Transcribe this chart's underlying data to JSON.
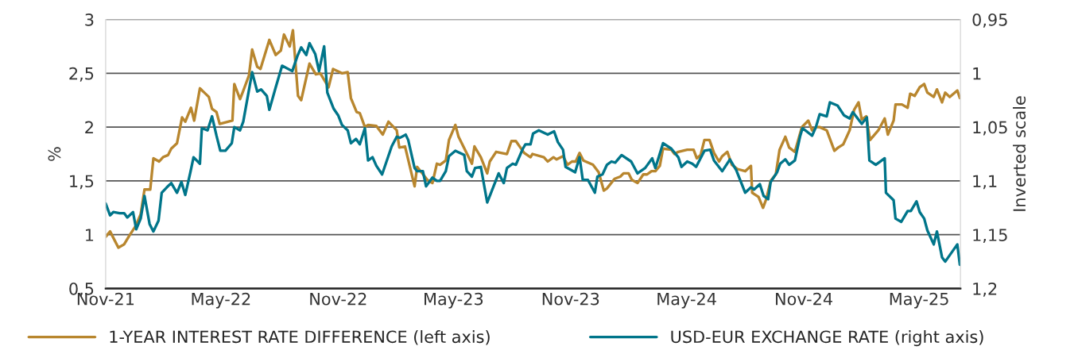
{
  "chart_data": {
    "type": "line",
    "ylabel": "%",
    "y2label": "Inverted scale",
    "xlim": [
      "2021-11-01",
      "2025-07-05"
    ],
    "xticks": [
      {
        "value": "2021-11-01",
        "label": "Nov-21"
      },
      {
        "value": "2022-05-01",
        "label": "May-22"
      },
      {
        "value": "2022-11-01",
        "label": "Nov-22"
      },
      {
        "value": "2023-05-01",
        "label": "May-23"
      },
      {
        "value": "2023-11-01",
        "label": "Nov-23"
      },
      {
        "value": "2024-05-01",
        "label": "May-24"
      },
      {
        "value": "2024-11-01",
        "label": "Nov-24"
      },
      {
        "value": "2025-05-01",
        "label": "May-25"
      }
    ],
    "ylim": [
      0.5,
      3
    ],
    "yticks": [
      {
        "value": 0.5,
        "label": "0,5"
      },
      1,
      {
        "value": 1.5,
        "label": "1,5"
      },
      2,
      {
        "value": 2.5,
        "label": "2,5"
      },
      3
    ],
    "y2lim": [
      1.2,
      0.95
    ],
    "y2ticks": [
      {
        "value": 0.95,
        "label": "0,95"
      },
      1,
      {
        "value": 1.05,
        "label": "1,05"
      },
      {
        "value": 1.1,
        "label": "1,1"
      },
      {
        "value": 1.15,
        "label": "1,15"
      },
      {
        "value": 1.2,
        "label": "1,2"
      }
    ],
    "grid": "y",
    "legend": "bottom",
    "marker": "none",
    "line_style": "solid",
    "series": [
      {
        "name": "1-YEAR INTEREST RATE DIFFERENCE (left axis)",
        "color": "#b8862e",
        "x": [
          "2021-11-01",
          "2021-11-08",
          "2021-11-21",
          "2021-11-30",
          "2021-12-08",
          "2021-12-18",
          "2021-12-26",
          "2022-01-01",
          "2022-01-10",
          "2022-01-15",
          "2022-01-24",
          "2022-01-30",
          "2022-02-07",
          "2022-02-12",
          "2022-02-21",
          "2022-03-01",
          "2022-03-06",
          "2022-03-15",
          "2022-03-20",
          "2022-03-29",
          "2022-04-12",
          "2022-04-17",
          "2022-04-24",
          "2022-04-29",
          "2022-05-19",
          "2022-05-22",
          "2022-05-31",
          "2022-06-04",
          "2022-06-14",
          "2022-06-19",
          "2022-06-27",
          "2022-07-02",
          "2022-07-16",
          "2022-07-26",
          "2022-08-03",
          "2022-08-08",
          "2022-08-17",
          "2022-08-22",
          "2022-08-30",
          "2022-09-04",
          "2022-09-17",
          "2022-09-27",
          "2022-10-04",
          "2022-10-17",
          "2022-10-24",
          "2022-11-07",
          "2022-11-16",
          "2022-11-21",
          "2022-11-30",
          "2022-12-05",
          "2022-12-13",
          "2022-12-18",
          "2022-12-31",
          "2023-01-10",
          "2023-01-19",
          "2023-02-01",
          "2023-02-05",
          "2023-02-14",
          "2023-03-01",
          "2023-03-05",
          "2023-03-21",
          "2023-03-29",
          "2023-04-05",
          "2023-04-10",
          "2023-04-19",
          "2023-04-24",
          "2023-05-04",
          "2023-05-09",
          "2023-05-30",
          "2023-06-03",
          "2023-06-13",
          "2023-06-23",
          "2023-06-27",
          "2023-07-07",
          "2023-07-24",
          "2023-07-31",
          "2023-08-07",
          "2023-08-20",
          "2023-08-30",
          "2023-09-02",
          "2023-09-20",
          "2023-09-26",
          "2023-10-05",
          "2023-10-10",
          "2023-10-20",
          "2023-10-27",
          "2023-11-03",
          "2023-11-09",
          "2023-11-15",
          "2023-11-21",
          "2023-12-06",
          "2023-12-15",
          "2023-12-23",
          "2023-12-28",
          "2024-01-09",
          "2024-01-18",
          "2024-01-23",
          "2024-01-31",
          "2024-02-05",
          "2024-02-14",
          "2024-02-23",
          "2024-02-29",
          "2024-03-07",
          "2024-03-13",
          "2024-03-20",
          "2024-03-25",
          "2024-04-07",
          "2024-04-12",
          "2024-04-18",
          "2024-05-02",
          "2024-05-12",
          "2024-05-17",
          "2024-05-23",
          "2024-05-29",
          "2024-06-06",
          "2024-06-13",
          "2024-06-21",
          "2024-06-26",
          "2024-07-04",
          "2024-07-11",
          "2024-07-20",
          "2024-08-01",
          "2024-08-10",
          "2024-08-12",
          "2024-08-22",
          "2024-08-29",
          "2024-09-03",
          "2024-09-10",
          "2024-09-18",
          "2024-09-24",
          "2024-10-03",
          "2024-10-09",
          "2024-10-18",
          "2024-10-29",
          "2024-11-08",
          "2024-11-14",
          "2024-11-20",
          "2024-11-26",
          "2024-12-07",
          "2024-12-19",
          "2024-12-25",
          "2025-01-02",
          "2025-01-12",
          "2025-01-19",
          "2025-01-26",
          "2025-01-31",
          "2025-02-07",
          "2025-02-13",
          "2025-02-26",
          "2025-03-08",
          "2025-03-13",
          "2025-03-22",
          "2025-03-25",
          "2025-04-04",
          "2025-04-13",
          "2025-04-17",
          "2025-04-24",
          "2025-05-02",
          "2025-05-09",
          "2025-05-14",
          "2025-05-24",
          "2025-05-29",
          "2025-06-06",
          "2025-06-11",
          "2025-06-18",
          "2025-06-30",
          "2025-07-04"
        ],
        "values": [
          0.98,
          1.03,
          0.88,
          0.91,
          0.99,
          1.08,
          1.19,
          1.42,
          1.42,
          1.71,
          1.68,
          1.72,
          1.74,
          1.8,
          1.85,
          2.09,
          2.05,
          2.18,
          2.06,
          2.36,
          2.28,
          2.17,
          2.14,
          2.03,
          2.06,
          2.4,
          2.26,
          2.32,
          2.48,
          2.72,
          2.56,
          2.54,
          2.81,
          2.67,
          2.71,
          2.86,
          2.75,
          2.9,
          2.29,
          2.25,
          2.59,
          2.49,
          2.5,
          2.37,
          2.54,
          2.5,
          2.51,
          2.27,
          2.14,
          2.13,
          2.0,
          2.02,
          2.01,
          1.93,
          2.05,
          1.97,
          1.81,
          1.82,
          1.45,
          1.63,
          1.51,
          1.48,
          1.66,
          1.65,
          1.69,
          1.88,
          2.02,
          1.91,
          1.66,
          1.82,
          1.72,
          1.57,
          1.68,
          1.77,
          1.75,
          1.87,
          1.87,
          1.76,
          1.72,
          1.75,
          1.72,
          1.68,
          1.72,
          1.7,
          1.73,
          1.65,
          1.68,
          1.68,
          1.76,
          1.69,
          1.65,
          1.58,
          1.41,
          1.43,
          1.52,
          1.54,
          1.57,
          1.57,
          1.51,
          1.48,
          1.56,
          1.56,
          1.59,
          1.59,
          1.64,
          1.8,
          1.79,
          1.75,
          1.77,
          1.79,
          1.79,
          1.71,
          1.74,
          1.88,
          1.88,
          1.76,
          1.68,
          1.73,
          1.77,
          1.65,
          1.61,
          1.59,
          1.64,
          1.39,
          1.35,
          1.25,
          1.33,
          1.5,
          1.56,
          1.79,
          1.91,
          1.81,
          1.77,
          2.0,
          2.06,
          1.97,
          2.0,
          2.0,
          1.97,
          1.78,
          1.81,
          1.84,
          1.97,
          2.16,
          2.23,
          2.07,
          2.1,
          1.88,
          1.97,
          2.08,
          1.93,
          2.06,
          2.21,
          2.21,
          2.18,
          2.31,
          2.29,
          2.37,
          2.4,
          2.32,
          2.28,
          2.35,
          2.23,
          2.32,
          2.28,
          2.34,
          2.27
        ]
      },
      {
        "name": "USD-EUR EXCHANGE RATE (right axis)",
        "color": "#00758a",
        "axis": "y2",
        "x": [
          "2021-11-01",
          "2021-11-08",
          "2021-11-13",
          "2021-11-23",
          "2021-11-30",
          "2021-12-05",
          "2021-12-14",
          "2021-12-19",
          "2021-12-26",
          "2022-01-01",
          "2022-01-09",
          "2022-01-15",
          "2022-01-23",
          "2022-01-28",
          "2022-02-05",
          "2022-02-12",
          "2022-02-21",
          "2022-02-28",
          "2022-03-06",
          "2022-03-14",
          "2022-03-19",
          "2022-03-29",
          "2022-04-01",
          "2022-04-10",
          "2022-04-17",
          "2022-04-24",
          "2022-04-30",
          "2022-05-08",
          "2022-05-18",
          "2022-05-22",
          "2022-05-31",
          "2022-06-05",
          "2022-06-19",
          "2022-06-27",
          "2022-07-03",
          "2022-07-12",
          "2022-07-16",
          "2022-07-26",
          "2022-08-05",
          "2022-08-21",
          "2022-08-29",
          "2022-09-04",
          "2022-09-12",
          "2022-09-17",
          "2022-09-26",
          "2022-10-02",
          "2022-10-10",
          "2022-10-15",
          "2022-10-25",
          "2022-11-01",
          "2022-11-07",
          "2022-11-16",
          "2022-11-21",
          "2022-11-29",
          "2022-12-05",
          "2022-12-13",
          "2022-12-18",
          "2022-12-25",
          "2022-12-31",
          "2023-01-09",
          "2023-01-24",
          "2023-02-01",
          "2023-02-06",
          "2023-02-15",
          "2023-02-19",
          "2023-03-01",
          "2023-03-05",
          "2023-03-14",
          "2023-03-19",
          "2023-03-29",
          "2023-04-05",
          "2023-04-10",
          "2023-04-19",
          "2023-04-24",
          "2023-05-04",
          "2023-05-18",
          "2023-05-22",
          "2023-05-30",
          "2023-06-04",
          "2023-06-13",
          "2023-06-23",
          "2023-07-11",
          "2023-07-19",
          "2023-07-24",
          "2023-08-02",
          "2023-08-07",
          "2023-08-18",
          "2023-08-22",
          "2023-08-30",
          "2023-09-03",
          "2023-09-12",
          "2023-09-26",
          "2023-10-06",
          "2023-10-12",
          "2023-10-20",
          "2023-10-24",
          "2023-11-08",
          "2023-11-15",
          "2023-11-20",
          "2023-11-28",
          "2023-12-09",
          "2023-12-13",
          "2023-12-21",
          "2023-12-28",
          "2024-01-04",
          "2024-01-10",
          "2024-01-20",
          "2024-02-04",
          "2024-02-14",
          "2024-02-26",
          "2024-03-08",
          "2024-03-13",
          "2024-03-25",
          "2024-04-07",
          "2024-04-18",
          "2024-04-23",
          "2024-05-02",
          "2024-05-10",
          "2024-05-16",
          "2024-05-29",
          "2024-06-07",
          "2024-06-13",
          "2024-06-26",
          "2024-07-08",
          "2024-07-18",
          "2024-08-01",
          "2024-08-10",
          "2024-08-15",
          "2024-08-24",
          "2024-08-30",
          "2024-09-06",
          "2024-09-10",
          "2024-09-20",
          "2024-09-25",
          "2024-10-03",
          "2024-10-09",
          "2024-10-18",
          "2024-10-26",
          "2024-10-30",
          "2024-11-14",
          "2024-11-20",
          "2024-11-26",
          "2024-12-07",
          "2024-12-12",
          "2024-12-24",
          "2025-01-03",
          "2025-01-12",
          "2025-01-17",
          "2025-01-31",
          "2025-02-08",
          "2025-02-12",
          "2025-02-22",
          "2025-03-08",
          "2025-03-10",
          "2025-03-22",
          "2025-03-25",
          "2025-04-03",
          "2025-04-13",
          "2025-04-18",
          "2025-04-27",
          "2025-05-02",
          "2025-05-09",
          "2025-05-14",
          "2025-05-24",
          "2025-05-29",
          "2025-06-06",
          "2025-06-11",
          "2025-06-30",
          "2025-07-04"
        ],
        "values": [
          1.121,
          1.132,
          1.129,
          1.13,
          1.13,
          1.134,
          1.129,
          1.145,
          1.135,
          1.114,
          1.14,
          1.147,
          1.137,
          1.111,
          1.106,
          1.102,
          1.111,
          1.101,
          1.113,
          1.092,
          1.078,
          1.084,
          1.051,
          1.053,
          1.04,
          1.058,
          1.072,
          1.072,
          1.065,
          1.05,
          1.053,
          1.045,
          0.999,
          1.017,
          1.015,
          1.021,
          1.034,
          1.013,
          0.993,
          0.998,
          0.984,
          0.976,
          0.983,
          0.972,
          0.982,
          0.998,
          0.975,
          1.018,
          1.033,
          1.039,
          1.048,
          1.053,
          1.065,
          1.061,
          1.066,
          1.051,
          1.081,
          1.078,
          1.086,
          1.094,
          1.068,
          1.059,
          1.06,
          1.057,
          1.062,
          1.088,
          1.091,
          1.091,
          1.105,
          1.097,
          1.1,
          1.1,
          1.091,
          1.077,
          1.072,
          1.076,
          1.091,
          1.096,
          1.088,
          1.087,
          1.12,
          1.093,
          1.102,
          1.088,
          1.084,
          1.085,
          1.07,
          1.066,
          1.066,
          1.056,
          1.053,
          1.057,
          1.054,
          1.064,
          1.071,
          1.087,
          1.092,
          1.078,
          1.099,
          1.099,
          1.111,
          1.096,
          1.094,
          1.085,
          1.082,
          1.083,
          1.076,
          1.082,
          1.093,
          1.088,
          1.079,
          1.088,
          1.065,
          1.07,
          1.078,
          1.087,
          1.082,
          1.084,
          1.087,
          1.072,
          1.071,
          1.081,
          1.091,
          1.08,
          1.09,
          1.111,
          1.106,
          1.108,
          1.103,
          1.114,
          1.117,
          1.101,
          1.092,
          1.084,
          1.08,
          1.085,
          1.081,
          1.059,
          1.051,
          1.058,
          1.05,
          1.038,
          1.04,
          1.027,
          1.03,
          1.039,
          1.042,
          1.036,
          1.047,
          1.041,
          1.081,
          1.085,
          1.079,
          1.111,
          1.118,
          1.135,
          1.138,
          1.128,
          1.128,
          1.119,
          1.129,
          1.135,
          1.146,
          1.159,
          1.147,
          1.171,
          1.175,
          1.159,
          1.178
        ]
      }
    ]
  }
}
